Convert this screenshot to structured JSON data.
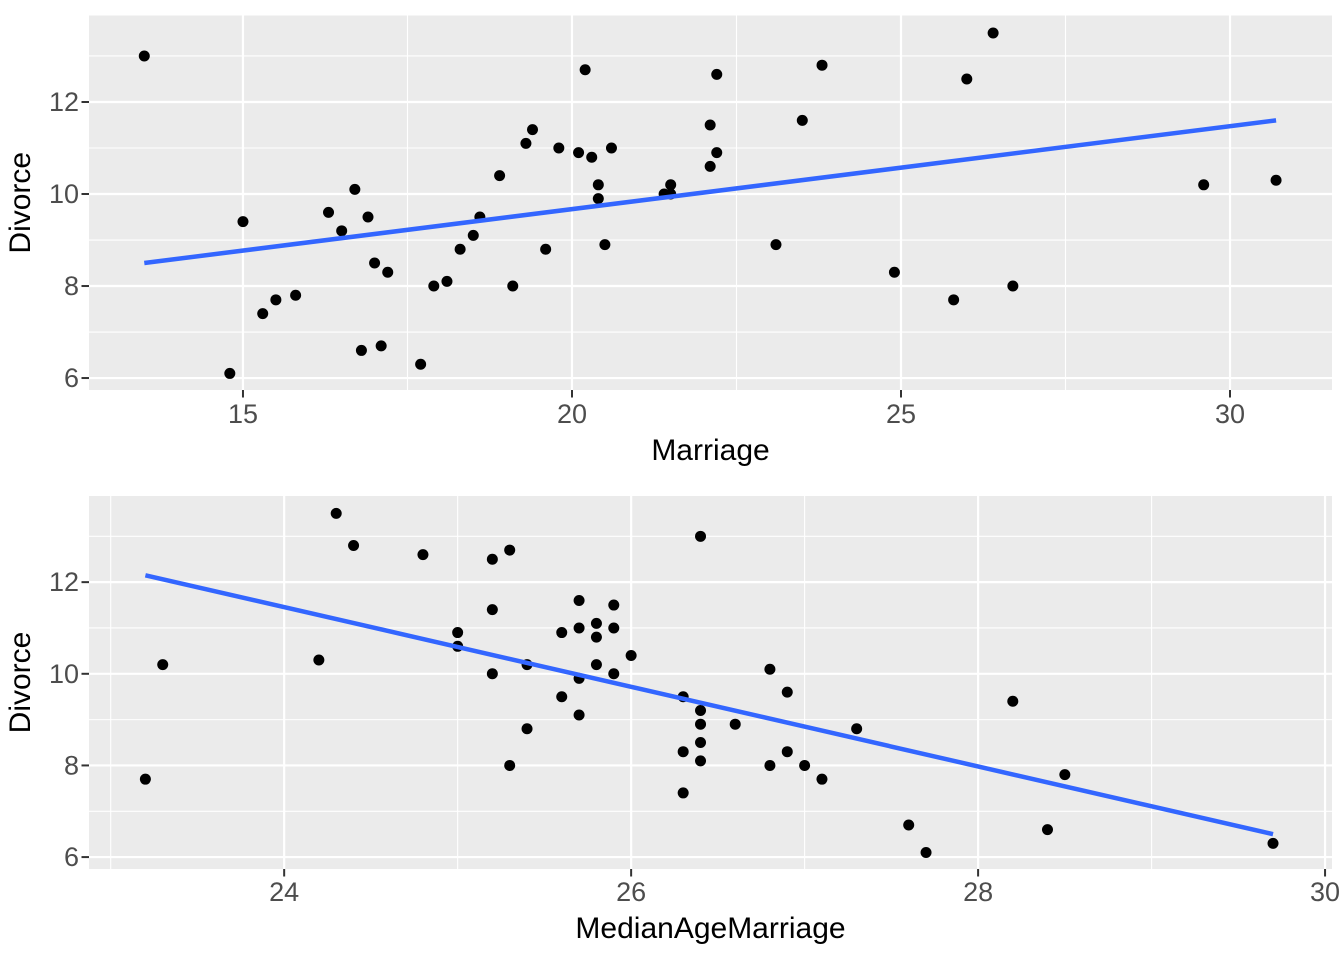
{
  "figure": {
    "background": "#FFFFFF",
    "style": {
      "panel_bg": "#EBEBEB",
      "grid_color": "#FFFFFF",
      "grid_major_width": 2.2,
      "grid_minor_width": 1.1,
      "point_color": "#000000",
      "point_radius": 5.5,
      "trend_color": "#3366FF",
      "trend_width": 4.5,
      "tick_color": "#333333",
      "tick_label_color": "#4D4D4D",
      "axis_title_color": "#000000"
    }
  },
  "chart_data": [
    {
      "type": "scatter",
      "title": "",
      "xlabel": "Marriage",
      "ylabel": "Divorce",
      "xlim": [
        12.66,
        31.55
      ],
      "ylim": [
        5.74,
        13.88
      ],
      "x_ticks": [
        15,
        20,
        25,
        30
      ],
      "x_tick_labels": [
        "15",
        "20",
        "25",
        "30"
      ],
      "y_ticks": [
        6,
        8,
        10,
        12
      ],
      "y_tick_labels": [
        "6",
        "8",
        "10",
        "12"
      ],
      "x_minor_ticks": [
        17.5,
        22.5,
        27.5
      ],
      "y_minor_ticks": [
        7,
        9,
        11,
        13
      ],
      "grid": true,
      "legend": false,
      "points": [
        [
          20.2,
          12.7
        ],
        [
          26.0,
          12.5
        ],
        [
          20.3,
          10.8
        ],
        [
          26.4,
          13.5
        ],
        [
          19.1,
          8.0
        ],
        [
          23.5,
          11.6
        ],
        [
          17.1,
          6.7
        ],
        [
          23.1,
          8.9
        ],
        [
          17.7,
          6.3
        ],
        [
          17.0,
          8.5
        ],
        [
          22.1,
          11.5
        ],
        [
          24.9,
          8.3
        ],
        [
          25.8,
          7.7
        ],
        [
          17.9,
          8.0
        ],
        [
          19.8,
          11.0
        ],
        [
          21.5,
          10.2
        ],
        [
          22.1,
          10.6
        ],
        [
          22.2,
          12.6
        ],
        [
          20.6,
          11.0
        ],
        [
          13.5,
          13.0
        ],
        [
          18.3,
          8.8
        ],
        [
          15.8,
          7.8
        ],
        [
          16.5,
          9.2
        ],
        [
          15.3,
          7.4
        ],
        [
          19.3,
          11.1
        ],
        [
          18.6,
          9.5
        ],
        [
          18.5,
          9.1
        ],
        [
          19.6,
          8.8
        ],
        [
          16.7,
          10.1
        ],
        [
          14.8,
          6.1
        ],
        [
          20.4,
          10.2
        ],
        [
          16.8,
          6.6
        ],
        [
          20.4,
          9.9
        ],
        [
          26.7,
          8.0
        ],
        [
          16.9,
          9.5
        ],
        [
          23.8,
          12.8
        ],
        [
          18.9,
          10.4
        ],
        [
          15.5,
          7.7
        ],
        [
          15.0,
          9.4
        ],
        [
          18.1,
          8.1
        ],
        [
          20.1,
          10.9
        ],
        [
          19.4,
          11.4
        ],
        [
          21.5,
          10.0
        ],
        [
          29.6,
          10.2
        ],
        [
          16.3,
          9.6
        ],
        [
          20.5,
          8.9
        ],
        [
          21.4,
          10.0
        ],
        [
          22.2,
          10.9
        ],
        [
          17.2,
          8.3
        ],
        [
          30.7,
          10.3
        ]
      ],
      "trend_line": {
        "type": "linear",
        "x": [
          13.5,
          30.7
        ],
        "y": [
          8.5,
          11.6
        ]
      }
    },
    {
      "type": "scatter",
      "title": "",
      "xlabel": "MedianAgeMarriage",
      "ylabel": "Divorce",
      "xlim": [
        22.875,
        30.04
      ],
      "ylim": [
        5.74,
        13.88
      ],
      "x_ticks": [
        24,
        26,
        28,
        30
      ],
      "x_tick_labels": [
        "24",
        "26",
        "28",
        "30"
      ],
      "y_ticks": [
        6,
        8,
        10,
        12
      ],
      "y_tick_labels": [
        "6",
        "8",
        "10",
        "12"
      ],
      "x_minor_ticks": [
        23,
        25,
        27,
        29
      ],
      "y_minor_ticks": [
        7,
        9,
        11,
        13
      ],
      "grid": true,
      "legend": false,
      "points": [
        [
          25.3,
          12.7
        ],
        [
          25.2,
          12.5
        ],
        [
          25.8,
          10.8
        ],
        [
          24.3,
          13.5
        ],
        [
          26.8,
          8.0
        ],
        [
          25.7,
          11.6
        ],
        [
          27.6,
          6.7
        ],
        [
          26.6,
          8.9
        ],
        [
          29.7,
          6.3
        ],
        [
          26.4,
          8.5
        ],
        [
          25.9,
          11.5
        ],
        [
          26.9,
          8.3
        ],
        [
          23.2,
          7.7
        ],
        [
          27.0,
          8.0
        ],
        [
          25.7,
          11.0
        ],
        [
          25.4,
          10.2
        ],
        [
          25.0,
          10.6
        ],
        [
          24.8,
          12.6
        ],
        [
          25.9,
          11.0
        ],
        [
          26.4,
          13.0
        ],
        [
          27.3,
          8.8
        ],
        [
          28.5,
          7.8
        ],
        [
          26.4,
          9.2
        ],
        [
          26.3,
          7.4
        ],
        [
          25.8,
          11.1
        ],
        [
          25.6,
          9.5
        ],
        [
          25.7,
          9.1
        ],
        [
          25.4,
          8.8
        ],
        [
          26.8,
          10.1
        ],
        [
          27.7,
          6.1
        ],
        [
          25.8,
          10.2
        ],
        [
          28.4,
          6.6
        ],
        [
          25.7,
          9.9
        ],
        [
          25.3,
          8.0
        ],
        [
          26.3,
          9.5
        ],
        [
          24.4,
          12.8
        ],
        [
          26.0,
          10.4
        ],
        [
          27.1,
          7.7
        ],
        [
          28.2,
          9.4
        ],
        [
          26.4,
          8.1
        ],
        [
          25.6,
          10.9
        ],
        [
          25.2,
          11.4
        ],
        [
          25.2,
          10.0
        ],
        [
          23.3,
          10.2
        ],
        [
          26.9,
          9.6
        ],
        [
          26.4,
          8.9
        ],
        [
          25.9,
          10.0
        ],
        [
          25.0,
          10.9
        ],
        [
          26.3,
          8.3
        ],
        [
          24.2,
          10.3
        ]
      ],
      "trend_line": {
        "type": "linear",
        "x": [
          23.2,
          29.7
        ],
        "y": [
          12.15,
          6.5
        ]
      }
    }
  ]
}
